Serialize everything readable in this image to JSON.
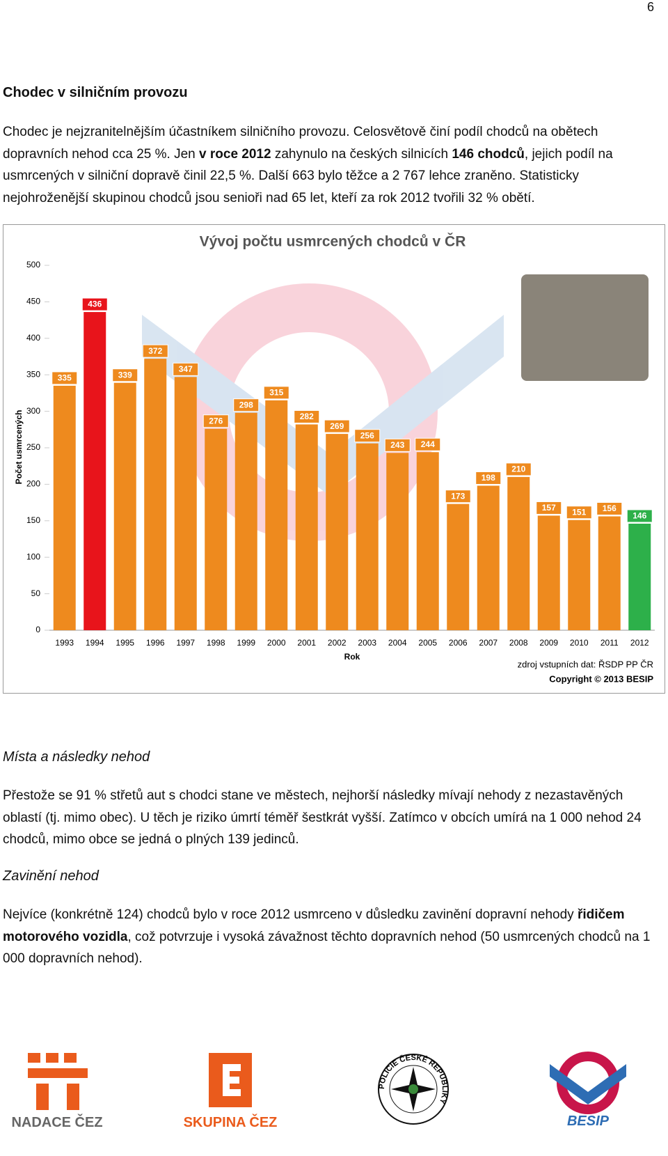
{
  "page_number": "6",
  "sections": [
    {
      "heading": "Chodec v silničním provozu",
      "paragraphs": [
        [
          {
            "text": "Chodec je nejzranitelnějším účastníkem silničního provozu. Celosvětově činí podíl chodců na obětech dopravních nehod cca 25 %. Jen "
          },
          {
            "text": "v roce 2012",
            "bold": true
          },
          {
            "text": " zahynulo na českých silnicích "
          },
          {
            "text": "146 chodců",
            "bold": true
          },
          {
            "text": ", jejich podíl na usmrcených v silniční dopravě činil 22,5 %. Další 663 bylo těžce a 2 767 lehce zraněno. Statisticky nejohroženější skupinou chodců jsou senioři nad 65 let, kteří za rok 2012 tvořili 32 % obětí."
          }
        ]
      ]
    },
    {
      "heading": "Místa a následky nehod",
      "paragraphs": [
        [
          {
            "text": "Přestože se 91 % střetů aut s chodci stane ve městech, nejhorší následky mívají nehody z nezastavěných oblastí (tj. mimo obec). U těch je riziko úmrtí téměř šestkrát vyšší. Zatímco v obcích umírá na 1 000 nehod 24 chodců, mimo obce se jedná o plných 139 jedinců."
          }
        ]
      ]
    },
    {
      "heading": "Zavinění nehod",
      "paragraphs": [
        [
          {
            "text": "Nejvíce (konkrétně 124) chodců bylo v roce 2012 usmrceno v důsledku zavinění dopravní nehody "
          },
          {
            "text": "řidičem motorového vozidla",
            "bold": true
          },
          {
            "text": ", což potvrzuje i vysoká závažnost těchto dopravních nehod (50 usmrcených chodců na 1 000 dopravních nehod)."
          }
        ]
      ]
    }
  ],
  "chart_data": {
    "type": "bar",
    "title": "Vývoj počtu usmrcených chodců v ČR",
    "y_label": "Počet usmrcených",
    "x_label": "Rok",
    "source": "zdroj vstupních dat: ŘSDP PP ČR",
    "copyright": "Copyright © 2013 BESIP",
    "categories": [
      "1993",
      "1994",
      "1995",
      "1996",
      "1997",
      "1998",
      "1999",
      "2000",
      "2001",
      "2002",
      "2003",
      "2004",
      "2005",
      "2006",
      "2007",
      "2008",
      "2009",
      "2010",
      "2011",
      "2012"
    ],
    "values": [
      335,
      436,
      339,
      372,
      347,
      276,
      298,
      315,
      282,
      269,
      256,
      243,
      244,
      173,
      198,
      210,
      157,
      151,
      156,
      146
    ],
    "colors": [
      "#ee8a1e",
      "#e8141b",
      "#ee8a1e",
      "#ee8a1e",
      "#ee8a1e",
      "#ee8a1e",
      "#ee8a1e",
      "#ee8a1e",
      "#ee8a1e",
      "#ee8a1e",
      "#ee8a1e",
      "#ee8a1e",
      "#ee8a1e",
      "#ee8a1e",
      "#ee8a1e",
      "#ee8a1e",
      "#ee8a1e",
      "#ee8a1e",
      "#ee8a1e",
      "#2db04a"
    ],
    "ylim": [
      0,
      500
    ],
    "yticks": [
      0,
      50,
      100,
      150,
      200,
      250,
      300,
      350,
      400,
      450,
      500
    ],
    "grid": false
  },
  "logos": [
    {
      "label": "NADACE ČEZ"
    },
    {
      "label": "SKUPINA ČEZ"
    },
    {
      "label": "POLICIE ČESKÉ REPUBLIKY"
    },
    {
      "label": "BESIP"
    }
  ]
}
